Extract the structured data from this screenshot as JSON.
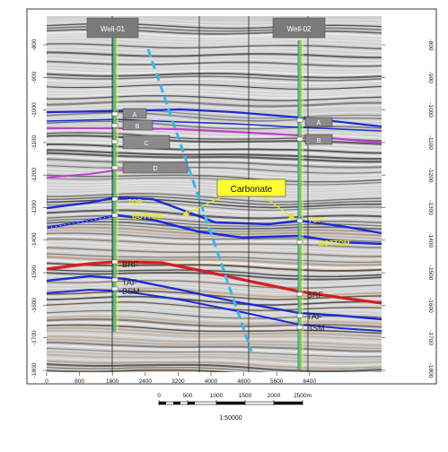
{
  "wells": [
    {
      "label": "Well-01",
      "well_x": 1210,
      "markers": [
        "A",
        "B",
        "C",
        "D"
      ],
      "horizon_labels": [
        "TOP",
        "BOTTOM",
        "BRF",
        "TAF",
        "BSM"
      ]
    },
    {
      "label": "Well-02",
      "well_x": 4620,
      "markers": [
        "A",
        "B"
      ],
      "horizon_labels": [
        "TOP",
        "BOTTOM",
        "BRF",
        "TAF",
        "BSM"
      ]
    }
  ],
  "callout": {
    "text": "Carbonate"
  },
  "x_ticks": [
    "0",
    "800",
    "1600",
    "2400",
    "3200",
    "4000",
    "4800",
    "5600",
    "6400"
  ],
  "y_ticks": [
    "-800",
    "-900",
    "-1000",
    "-1100",
    "-1200",
    "-1300",
    "-1400",
    "-1500",
    "-1600",
    "-1700",
    "-1800"
  ],
  "scale_bar": {
    "ticks": [
      "0",
      "500",
      "1000",
      "1500",
      "2000",
      "2500m"
    ],
    "ratio": "1:50000"
  },
  "colors": {
    "horizon_blue": "#1c2bd6",
    "horizon_magenta": "#c23fd0",
    "horizon_red": "#d42020",
    "fault": "#38b8e8",
    "well_track": "#5ed04a",
    "well_label_bg": "#7a7a7a",
    "callout_fill": "#ffff33",
    "label_yellow": "#e8e800"
  }
}
